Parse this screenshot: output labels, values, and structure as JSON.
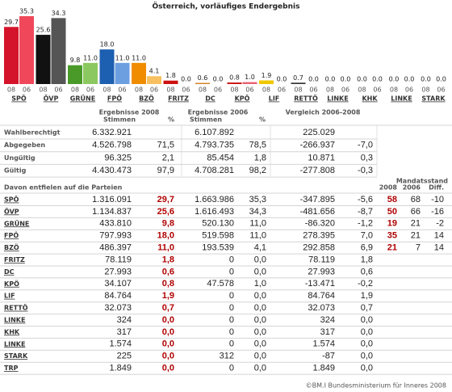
{
  "chart_data": {
    "type": "bar",
    "title": "Österreich, vorläufiges Endergebnis",
    "categories": [
      "SPÖ",
      "ÖVP",
      "GRÜNE",
      "FPÖ",
      "BZÖ",
      "FRITZ",
      "DC",
      "KPÖ",
      "LIF",
      "RETTÖ",
      "LINKE",
      "KHK",
      "LINKE",
      "STARK"
    ],
    "series": [
      {
        "name": "08",
        "colors": [
          "#d4142a",
          "#111111",
          "#4a9a2a",
          "#1d5fb0",
          "#f08c00",
          "#cc1111",
          "#d48020",
          "#cc1111",
          "#f0c800",
          "#333333",
          "#333333",
          "#333333",
          "#333333",
          "#333333"
        ],
        "values": [
          29.7,
          25.6,
          9.8,
          18.0,
          11.0,
          1.8,
          0.6,
          0.8,
          1.9,
          0.7,
          0.0,
          0.0,
          0.0,
          0.0
        ],
        "value_labels": [
          "29.7",
          "25.6",
          "9.8",
          "18.0",
          "11.0",
          "1.8",
          "0.6",
          "0.8",
          "1.9",
          "0.7",
          "0.0",
          "0.0",
          "0.0",
          "0.0"
        ]
      },
      {
        "name": "06",
        "colors": [
          "#f0485a",
          "#555555",
          "#8cc860",
          "#6c9fe0",
          "#f8c060",
          "#e06060",
          "#e8b070",
          "#e86070",
          "#f8e060",
          "#999999",
          "#999999",
          "#999999",
          "#999999",
          "#999999"
        ],
        "values": [
          35.3,
          34.3,
          11.0,
          11.0,
          4.1,
          0.0,
          0.0,
          1.0,
          0.0,
          0.0,
          0.0,
          0.0,
          0.0,
          0.0
        ],
        "value_labels": [
          "35.3",
          "34.3",
          "11.0",
          "11.0",
          "4.1",
          "0.0",
          "0.0",
          "1.0",
          "0.0",
          "0.0",
          "0.0",
          "0.0",
          "0.0",
          "0.0"
        ]
      }
    ]
  },
  "table": {
    "column_groups": [
      {
        "title": "Ergebnisse 2008",
        "columns": [
          "Stimmen",
          "%"
        ]
      },
      {
        "title": "Ergebnisse 2006",
        "columns": [
          "Stimmen",
          "%"
        ]
      },
      {
        "title": "Vergleich 2006-2008"
      }
    ],
    "summary_rows": [
      [
        "Wahlberechtigt",
        "6.332.921",
        null,
        "6.107.892",
        null,
        "225.029",
        null
      ],
      [
        "Abgegeben",
        "4.526.798",
        "71,5",
        "4.793.735",
        "78,5",
        "-266.937",
        "-7,0"
      ],
      [
        "Ungültig",
        "96.325",
        "2,1",
        "85.454",
        "1,8",
        "10.871",
        "0,3"
      ],
      [
        "Gültig",
        "4.430.473",
        "97,9",
        "4.708.281",
        "98,2",
        "-277.808",
        "-0,3"
      ]
    ],
    "mandate_title": "Mandatsstand",
    "section_title": "Davon entfielen auf die Parteien",
    "mandate_columns": [
      "2008",
      "2006",
      "Diff."
    ],
    "party_rows": [
      [
        "SPÖ",
        "1.316.091",
        "29,7",
        "1.663.986",
        "35,3",
        "-347.895",
        "-5,6",
        "58",
        "68",
        "-10"
      ],
      [
        "ÖVP",
        "1.134.837",
        "25,6",
        "1.616.493",
        "34,3",
        "-481.656",
        "-8,7",
        "50",
        "66",
        "-16"
      ],
      [
        "GRÜNE",
        "433.810",
        "9,8",
        "520.130",
        "11,0",
        "-86.320",
        "-1,2",
        "19",
        "21",
        "-2"
      ],
      [
        "FPÖ",
        "797.993",
        "18,0",
        "519.598",
        "11,0",
        "278.395",
        "7,0",
        "35",
        "21",
        "14"
      ],
      [
        "BZÖ",
        "486.397",
        "11,0",
        "193.539",
        "4,1",
        "292.858",
        "6,9",
        "21",
        "7",
        "14"
      ],
      [
        "FRITZ",
        "78.119",
        "1,8",
        "0",
        "0,0",
        "78.119",
        "1,8"
      ],
      [
        "DC",
        "27.993",
        "0,6",
        "0",
        "0,0",
        "27.993",
        "0,6"
      ],
      [
        "KPÖ",
        "34.107",
        "0,8",
        "47.578",
        "1,0",
        "-13.471",
        "-0,2"
      ],
      [
        "LIF",
        "84.764",
        "1,9",
        "0",
        "0,0",
        "84.764",
        "1,9"
      ],
      [
        "RETTÖ",
        "32.073",
        "0,7",
        "0",
        "0,0",
        "32.073",
        "0,7"
      ],
      [
        "LINKE",
        "324",
        "0,0",
        "0",
        "0,0",
        "324",
        "0,0"
      ],
      [
        "KHK",
        "317",
        "0,0",
        "0",
        "0,0",
        "317",
        "0,0"
      ],
      [
        "LINKE",
        "1.574",
        "0,0",
        "0",
        "0,0",
        "1.574",
        "0,0"
      ],
      [
        "STARK",
        "225",
        "0,0",
        "312",
        "0,0",
        "-87",
        "0,0"
      ],
      [
        "TRP",
        "1.849",
        "0,0",
        "0",
        "0,0",
        "1.849",
        "0,0"
      ]
    ]
  },
  "footer": "©BM.I Bundesministerium für Inneres 2008"
}
